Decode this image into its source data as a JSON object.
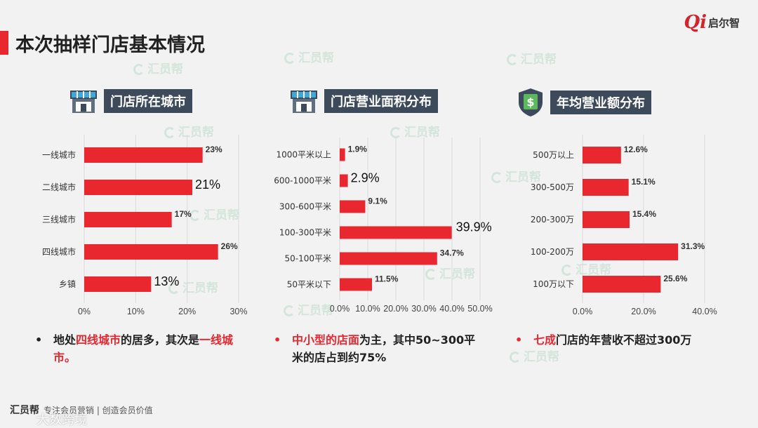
{
  "page_title": "本次抽样门店基本情况",
  "logo": {
    "mark": "Qi",
    "text": "启尔智"
  },
  "watermark_text": "汇员帮",
  "accent_color": "#e8272f",
  "label_bg_color": "#3d4a5c",
  "sections": [
    {
      "label": "门店所在城市",
      "icon": "storefront-icon"
    },
    {
      "label": "门店营业面积分布",
      "icon": "storefront-icon"
    },
    {
      "label": "年均营业额分布",
      "icon": "money-shield-icon"
    }
  ],
  "chart_data": [
    {
      "type": "bar",
      "orientation": "horizontal",
      "categories": [
        "一线城市",
        "二线城市",
        "三线城市",
        "四线城市",
        "乡镇"
      ],
      "values": [
        23,
        21,
        17,
        26,
        13
      ],
      "value_labels": [
        "23%",
        "21%",
        "17%",
        "26%",
        "13%"
      ],
      "xlim": [
        0,
        30
      ],
      "xticks": [
        "0%",
        "10%",
        "20%",
        "30%"
      ],
      "grid": true
    },
    {
      "type": "bar",
      "orientation": "horizontal",
      "categories": [
        "1000平米以上",
        "600-1000平米",
        "300-600平米",
        "100-300平米",
        "50-100平米",
        "50平米以下"
      ],
      "values": [
        1.9,
        2.9,
        9.1,
        39.9,
        34.7,
        11.5
      ],
      "value_labels": [
        "1.9%",
        "2.9%",
        "9.1%",
        "39.9%",
        "34.7%",
        "11.5%"
      ],
      "xlim": [
        0,
        50
      ],
      "xticks": [
        "0.0%",
        "10.0%",
        "20.0%",
        "30.0%",
        "40.0%",
        "50.0%"
      ],
      "grid": true
    },
    {
      "type": "bar",
      "orientation": "horizontal",
      "categories": [
        "500万以上",
        "300-500万",
        "200-300万",
        "100-200万",
        "100万以下"
      ],
      "values": [
        12.6,
        15.1,
        15.4,
        31.3,
        25.6
      ],
      "value_labels": [
        "12.6%",
        "15.1%",
        "15.4%",
        "31.3%",
        "25.6%"
      ],
      "xlim": [
        0,
        40
      ],
      "xticks": [
        "0.0%",
        "20.0%",
        "40.0%"
      ],
      "grid": true
    }
  ],
  "notes": [
    {
      "bullet": "•",
      "parts": [
        {
          "t": "地处",
          "hl": false
        },
        {
          "t": "四线城市",
          "hl": true
        },
        {
          "t": "的居多，其次是",
          "hl": false
        },
        {
          "t": "一线城市。",
          "hl": true
        }
      ]
    },
    {
      "bullet": "•",
      "parts": [
        {
          "t": "中小型的店面",
          "hl": true
        },
        {
          "t": "为主，其中50~300平米的店占到约75%",
          "hl": false
        }
      ]
    },
    {
      "bullet": "•",
      "parts": [
        {
          "t": "七成",
          "hl": true
        },
        {
          "t": "门店的年营收不超过300万",
          "hl": false
        }
      ]
    }
  ],
  "footer": {
    "logo": "汇员帮",
    "tagline": "专注会员营销 | 创造会员价值",
    "corner": "大数跨境"
  }
}
